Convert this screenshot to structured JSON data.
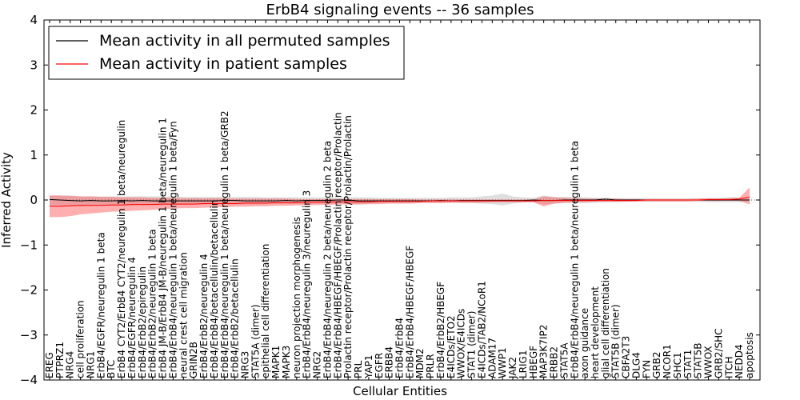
{
  "chart_data": {
    "type": "line",
    "title": "ErbB4 signaling events -- 36 samples",
    "xlabel": "Cellular Entities",
    "ylabel": "Inferred Activity",
    "ylim": [
      -4,
      4
    ],
    "yticks": [
      -4,
      -3,
      -2,
      -1,
      0,
      1,
      2,
      3,
      4
    ],
    "legend_position": "top-left",
    "categories": [
      "EREG",
      "PTPRZ1",
      "NRG4",
      "cell proliferation",
      "NRG1",
      "ErbB4/EGFR/neuregulin 1 beta",
      "BTC",
      "ErbB4 CYT2/ErbB4 CYT2/neuregulin 1 beta/neuregulin",
      "ErbB4/EGFR/neuregulin 4",
      "ErbB4/ErbB2/epiregulin",
      "ErbB4/ErbB2/neuregulin 1 beta",
      "ErbB4 JM-B/ErbB4 JM-B/neuregulin 1 beta/neuregulin 1",
      "ErbB4/ErbB4/neuregulin 1 beta/neuregulin 1 beta/Fyn",
      "neural crest cell migration",
      "GRIN2B",
      "ErbB4/ErbB2/neuregulin 4",
      "ErbB4/ErbB4/betacellulin/betacellulin",
      "ErbB4/ErbB4/neuregulin 1 beta/neuregulin 1 beta/GRB2",
      "ErbB4/ErbB2/betacellulin",
      "NRG3",
      "STAT5A (dimer)",
      "epithelial cell differentiation",
      "MAPK1",
      "MAPK3",
      "neuron projection morphogenesis",
      "ErbB4/ErbB4/neuregulin 3/neuregulin 3",
      "NRG2",
      "ErbB4/ErbB4/neuregulin 2 beta/neuregulin 2 beta",
      "ErbB4/ErbB4/HBEGF/HBEGF/Prolactin receptor/Prolactin",
      "Prolactin receptor/Prolactin receptor/Prolactin/Prolactin",
      "PRL",
      "YAP1",
      "EGFR",
      "ERBB4",
      "ErbB4/ErbB4",
      "ErbB4/ErbB4/HBEGF/HBEGF",
      "MDM2",
      "PRLR",
      "ErbB4/ErbB2/HBEGF",
      "E4ICDs/ETO2",
      "WWOX/E4ICDs",
      "STAT1 (dimer)",
      "E4ICDs/TAB2/NCoR1",
      "ADAM17",
      "WWP1",
      "JAK2",
      "LRIG1",
      "HBEGF",
      "MAP3K7IP2",
      "ERBB2",
      "STAT5A",
      "ErbB4/ErbB4/neuregulin 1 beta/neuregulin 1 beta",
      "axon guidance",
      "heart development",
      "glial cell differentiation",
      "STAT5B (dimer)",
      "CBFA2T3",
      "DLG4",
      "FYN",
      "GRB2",
      "NCOR1",
      "SHC1",
      "STAT1",
      "STAT5B",
      "WWOX",
      "GRB2/SHC",
      "ITCH",
      "NEDD4",
      "apoptosis"
    ],
    "series": [
      {
        "name": "Mean activity in all permuted samples",
        "color": "#000000",
        "values": [
          0.01,
          0.0,
          -0.01,
          -0.02,
          -0.01,
          -0.02,
          -0.02,
          -0.01,
          -0.02,
          -0.01,
          -0.02,
          -0.02,
          -0.02,
          -0.02,
          -0.02,
          -0.02,
          -0.02,
          -0.01,
          -0.01,
          -0.02,
          -0.02,
          -0.02,
          -0.02,
          -0.01,
          -0.02,
          -0.01,
          -0.01,
          -0.01,
          0.0,
          0.0,
          -0.02,
          -0.02,
          -0.02,
          -0.02,
          -0.02,
          -0.02,
          -0.02,
          -0.02,
          -0.01,
          -0.02,
          -0.01,
          -0.01,
          -0.01,
          -0.01,
          -0.01,
          -0.01,
          -0.01,
          0.0,
          -0.01,
          -0.01,
          0.0,
          0.0,
          0.0,
          0.0,
          0.02,
          0.0,
          0.0,
          0.0,
          0.0,
          0.0,
          0.0,
          0.0,
          0.0,
          0.0,
          0.0,
          0.0,
          0.0,
          0.0,
          0.0
        ],
        "band_lower": [
          -0.12,
          -0.12,
          -0.12,
          -0.14,
          -0.13,
          -0.12,
          -0.12,
          -0.12,
          -0.12,
          -0.12,
          -0.12,
          -0.12,
          -0.11,
          -0.1,
          -0.1,
          -0.1,
          -0.1,
          -0.1,
          -0.1,
          -0.1,
          -0.1,
          -0.09,
          -0.09,
          -0.09,
          -0.09,
          -0.09,
          -0.08,
          -0.08,
          -0.08,
          -0.08,
          -0.09,
          -0.08,
          -0.07,
          -0.07,
          -0.07,
          -0.06,
          -0.06,
          -0.06,
          -0.06,
          -0.06,
          -0.07,
          -0.07,
          -0.08,
          -0.09,
          -0.12,
          -0.08,
          -0.06,
          -0.05,
          -0.1,
          -0.08,
          -0.07,
          -0.07,
          -0.07,
          -0.06,
          -0.05,
          -0.05,
          -0.04,
          -0.04,
          -0.04,
          -0.04,
          -0.04,
          -0.04,
          -0.04,
          -0.04,
          -0.05,
          -0.05,
          -0.05,
          -0.05,
          -0.03
        ],
        "band_upper": [
          0.1,
          0.1,
          0.1,
          0.08,
          0.08,
          0.08,
          0.08,
          0.08,
          0.08,
          0.08,
          0.08,
          0.08,
          0.08,
          0.07,
          0.07,
          0.07,
          0.07,
          0.07,
          0.07,
          0.07,
          0.07,
          0.06,
          0.06,
          0.06,
          0.06,
          0.06,
          0.06,
          0.06,
          0.06,
          0.06,
          0.06,
          0.06,
          0.05,
          0.05,
          0.05,
          0.05,
          0.05,
          0.05,
          0.05,
          0.06,
          0.06,
          0.06,
          0.08,
          0.1,
          0.14,
          0.08,
          0.06,
          0.05,
          0.1,
          0.07,
          0.07,
          0.07,
          0.06,
          0.05,
          0.05,
          0.04,
          0.04,
          0.04,
          0.04,
          0.04,
          0.04,
          0.04,
          0.04,
          0.04,
          0.05,
          0.05,
          0.06,
          0.06,
          0.03
        ]
      },
      {
        "name": "Mean activity in patient samples",
        "color": "#ff0000",
        "values": [
          -0.14,
          -0.14,
          -0.13,
          -0.12,
          -0.12,
          -0.12,
          -0.11,
          -0.11,
          -0.1,
          -0.1,
          -0.1,
          -0.09,
          -0.09,
          -0.09,
          -0.09,
          -0.08,
          -0.08,
          -0.08,
          -0.08,
          -0.07,
          -0.07,
          -0.07,
          -0.06,
          -0.06,
          -0.06,
          -0.05,
          -0.05,
          -0.05,
          -0.04,
          -0.04,
          -0.04,
          -0.04,
          -0.03,
          -0.03,
          -0.03,
          -0.03,
          -0.03,
          -0.02,
          -0.02,
          -0.02,
          -0.02,
          -0.02,
          -0.02,
          -0.02,
          -0.02,
          -0.02,
          -0.02,
          -0.02,
          -0.01,
          -0.01,
          -0.01,
          -0.01,
          -0.01,
          -0.01,
          -0.01,
          -0.01,
          -0.01,
          -0.01,
          0.0,
          0.0,
          0.0,
          0.0,
          0.0,
          0.0,
          0.01,
          0.01,
          0.01,
          0.02,
          0.07
        ],
        "band_lower": [
          -0.38,
          -0.38,
          -0.36,
          -0.32,
          -0.3,
          -0.28,
          -0.26,
          -0.25,
          -0.24,
          -0.23,
          -0.22,
          -0.2,
          -0.19,
          -0.18,
          -0.18,
          -0.17,
          -0.16,
          -0.16,
          -0.15,
          -0.15,
          -0.14,
          -0.14,
          -0.13,
          -0.13,
          -0.12,
          -0.12,
          -0.11,
          -0.11,
          -0.1,
          -0.1,
          -0.1,
          -0.09,
          -0.09,
          -0.08,
          -0.08,
          -0.08,
          -0.07,
          -0.07,
          -0.07,
          -0.06,
          -0.06,
          -0.06,
          -0.06,
          -0.05,
          -0.05,
          -0.05,
          -0.05,
          -0.05,
          -0.14,
          -0.08,
          -0.06,
          -0.05,
          -0.05,
          -0.04,
          -0.04,
          -0.04,
          -0.04,
          -0.03,
          -0.03,
          -0.03,
          -0.03,
          -0.03,
          -0.03,
          -0.02,
          -0.02,
          -0.02,
          -0.02,
          -0.02,
          -0.1
        ],
        "band_upper": [
          0.1,
          0.1,
          0.09,
          0.08,
          0.08,
          0.07,
          0.07,
          0.06,
          0.06,
          0.06,
          0.05,
          0.05,
          0.05,
          0.04,
          0.04,
          0.04,
          0.04,
          0.04,
          0.03,
          0.03,
          0.03,
          0.03,
          0.03,
          0.03,
          0.02,
          0.02,
          0.02,
          0.02,
          0.02,
          0.02,
          0.02,
          0.02,
          0.02,
          0.02,
          0.02,
          0.02,
          0.01,
          0.01,
          0.01,
          0.01,
          0.01,
          0.01,
          0.01,
          0.01,
          0.01,
          0.01,
          0.01,
          0.01,
          0.08,
          0.06,
          0.05,
          0.04,
          0.03,
          0.03,
          0.03,
          0.03,
          0.02,
          0.02,
          0.02,
          0.02,
          0.02,
          0.02,
          0.02,
          0.03,
          0.03,
          0.03,
          0.04,
          0.05,
          0.28
        ]
      }
    ]
  }
}
